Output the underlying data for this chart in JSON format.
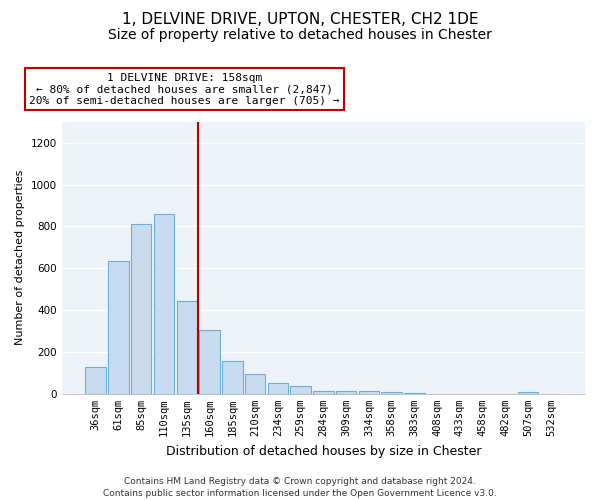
{
  "title_line1": "1, DELVINE DRIVE, UPTON, CHESTER, CH2 1DE",
  "title_line2": "Size of property relative to detached houses in Chester",
  "xlabel": "Distribution of detached houses by size in Chester",
  "ylabel": "Number of detached properties",
  "bar_labels": [
    "36sqm",
    "61sqm",
    "85sqm",
    "110sqm",
    "135sqm",
    "160sqm",
    "185sqm",
    "210sqm",
    "234sqm",
    "259sqm",
    "284sqm",
    "309sqm",
    "334sqm",
    "358sqm",
    "383sqm",
    "408sqm",
    "433sqm",
    "458sqm",
    "482sqm",
    "507sqm",
    "532sqm"
  ],
  "bar_values": [
    130,
    635,
    810,
    860,
    445,
    305,
    155,
    95,
    50,
    38,
    15,
    15,
    15,
    10,
    5,
    0,
    0,
    0,
    0,
    10,
    0
  ],
  "bar_color": "#c9dcef",
  "bar_edge_color": "#6baed6",
  "vline_color": "#c00000",
  "vline_x_index": 4.5,
  "annotation_line1": "1 DELVINE DRIVE: 158sqm",
  "annotation_line2": "← 80% of detached houses are smaller (2,847)",
  "annotation_line3": "20% of semi-detached houses are larger (705) →",
  "annotation_box_facecolor": "#ffffff",
  "annotation_box_edgecolor": "#c00000",
  "ylim_max": 1300,
  "yticks": [
    0,
    200,
    400,
    600,
    800,
    1000,
    1200
  ],
  "footer": "Contains HM Land Registry data © Crown copyright and database right 2024.\nContains public sector information licensed under the Open Government Licence v3.0.",
  "fig_bg_color": "#ffffff",
  "axes_bg_color": "#eef2f9",
  "grid_color": "#ffffff",
  "title1_fontsize": 11,
  "title2_fontsize": 10,
  "xlabel_fontsize": 9,
  "ylabel_fontsize": 8,
  "tick_fontsize": 7.5,
  "annot_fontsize": 8,
  "footer_fontsize": 6.5
}
